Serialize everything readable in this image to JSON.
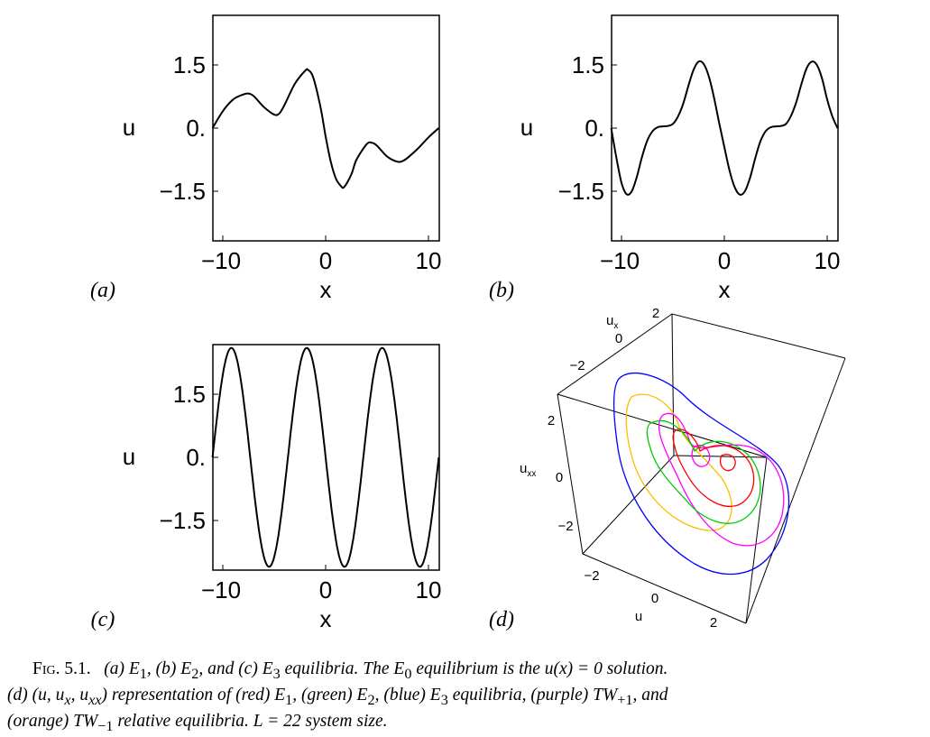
{
  "panels": [
    {
      "id": "a",
      "label": "(a)",
      "xlabel": "x",
      "ylabel": "u",
      "xticks": [
        "−10",
        "0",
        "10"
      ],
      "yticks": [
        "1.5",
        "0.",
        "−1.5"
      ],
      "xlim": [
        -11,
        11
      ],
      "ylim": [
        -2.6,
        2.6
      ],
      "chart_data": {
        "type": "line",
        "title": "",
        "xlabel": "x",
        "ylabel": "u",
        "xlim": [
          -11,
          11
        ],
        "ylim": [
          -2.6,
          2.6
        ],
        "series": [
          {
            "x": [
              -11,
              -10,
              -9,
              -8,
              -7.5,
              -7,
              -6,
              -5,
              -4.5,
              -4,
              -3,
              -2,
              -1.7,
              -1.2,
              -0.5,
              0,
              0.5,
              1,
              1.5,
              1.8,
              2.5,
              3,
              4,
              4.5,
              5,
              6,
              7,
              7.5,
              8,
              9,
              10,
              11
            ],
            "y": [
              0,
              0.4,
              0.68,
              0.8,
              0.82,
              0.76,
              0.5,
              0.32,
              0.35,
              0.55,
              1.05,
              1.36,
              1.38,
              1.2,
              0.5,
              -0.2,
              -0.8,
              -1.2,
              -1.38,
              -1.4,
              -1.1,
              -0.75,
              -0.38,
              -0.35,
              -0.42,
              -0.68,
              -0.8,
              -0.78,
              -0.7,
              -0.48,
              -0.22,
              0
            ]
          }
        ]
      }
    },
    {
      "id": "b",
      "label": "(b)",
      "xlabel": "x",
      "ylabel": "u",
      "xticks": [
        "−10",
        "0",
        "10"
      ],
      "yticks": [
        "1.5",
        "0.",
        "−1.5"
      ],
      "xlim": [
        -11,
        11
      ],
      "ylim": [
        -2.6,
        2.6
      ],
      "chart_data": {
        "type": "line",
        "title": "",
        "xlabel": "x",
        "ylabel": "u",
        "xlim": [
          -11,
          11
        ],
        "ylim": [
          -2.6,
          2.6
        ],
        "series": [
          {
            "x": [
              -11,
              -10.5,
              -10,
              -9.5,
              -9,
              -8.5,
              -8,
              -7.5,
              -7,
              -6.5,
              -6,
              -5.5,
              -5,
              -4.5,
              -4,
              -3.5,
              -3,
              -2.5,
              -2,
              -1.5,
              -1,
              -0.5,
              0,
              0.5,
              1,
              1.5,
              2,
              2.5,
              3,
              3.5,
              4,
              4.5,
              5,
              5.5,
              6,
              6.5,
              7,
              7.5,
              8,
              8.5,
              9,
              9.5,
              10,
              10.5,
              11
            ],
            "y": [
              0,
              -0.7,
              -1.3,
              -1.57,
              -1.5,
              -1.15,
              -0.68,
              -0.3,
              -0.08,
              0.02,
              0.04,
              0.05,
              0.1,
              0.28,
              0.58,
              1.0,
              1.38,
              1.58,
              1.52,
              1.22,
              0.72,
              0.12,
              -0.45,
              -1.0,
              -1.4,
              -1.58,
              -1.5,
              -1.18,
              -0.72,
              -0.32,
              -0.08,
              0.02,
              0.04,
              0.05,
              0.1,
              0.3,
              0.62,
              1.05,
              1.42,
              1.58,
              1.5,
              1.18,
              0.68,
              0.28,
              0
            ]
          }
        ]
      }
    },
    {
      "id": "c",
      "label": "(c)",
      "xlabel": "x",
      "ylabel": "u",
      "xticks": [
        "−10",
        "0",
        "10"
      ],
      "yticks": [
        "1.5",
        "0.",
        "−1.5"
      ],
      "xlim": [
        -11,
        11
      ],
      "ylim": [
        -2.6,
        2.6
      ],
      "chart_data": {
        "type": "line",
        "title": "",
        "xlabel": "x",
        "ylabel": "u",
        "xlim": [
          -11,
          11
        ],
        "ylim": [
          -2.6,
          2.6
        ],
        "series": [
          {
            "function": "2.6*sin(2*pi*3*(x+11)/22)",
            "x": [
              -11,
              11
            ]
          }
        ]
      }
    },
    {
      "id": "d",
      "label": "(d)",
      "axis_labels": {
        "ux": "u",
        "ux_sub": "x",
        "uxx": "u",
        "uxx_sub": "xx",
        "u": "u"
      },
      "ux_ticks": [
        "2",
        "0",
        "−2"
      ],
      "uxx_ticks": [
        "2",
        "0",
        "−2"
      ],
      "u_ticks": [
        "−2",
        "0",
        "2"
      ],
      "chart_data": {
        "type": "line",
        "title": "",
        "series": [
          {
            "color": "#ff0000"
          },
          {
            "color": "#00cc00"
          },
          {
            "color": "#0000ff"
          },
          {
            "color": "#ff00ff"
          },
          {
            "color": "#ffbb00"
          }
        ]
      }
    }
  ],
  "caption": {
    "fig_label": "Fig. 5.1.",
    "line1_a": "(a) E",
    "sub_1": "1",
    "line1_b": ", (b) E",
    "sub_2": "2",
    "line1_c": ", and (c) E",
    "sub_3": "3",
    "line1_d": " equilibria. The E",
    "sub_0": "0",
    "line1_e": " equilibrium is the u(x) = 0 solution.",
    "line2_a": "(d) (u, u",
    "sub_x": "x",
    "line2_b": ", u",
    "sub_xx": "xx",
    "line2_c": ") representation of (red) E",
    "sub_r": "1",
    "line2_d": ", (green) E",
    "sub_g": "2",
    "line2_e": ", (blue) E",
    "sub_b": "3",
    "line2_f": " equilibria, (purple) TW",
    "sub_p": "+1",
    "line2_g": ", and",
    "line3_a": "(orange) TW",
    "sub_o": "−1",
    "line3_b": " relative equilibria. L = 22 system size."
  }
}
